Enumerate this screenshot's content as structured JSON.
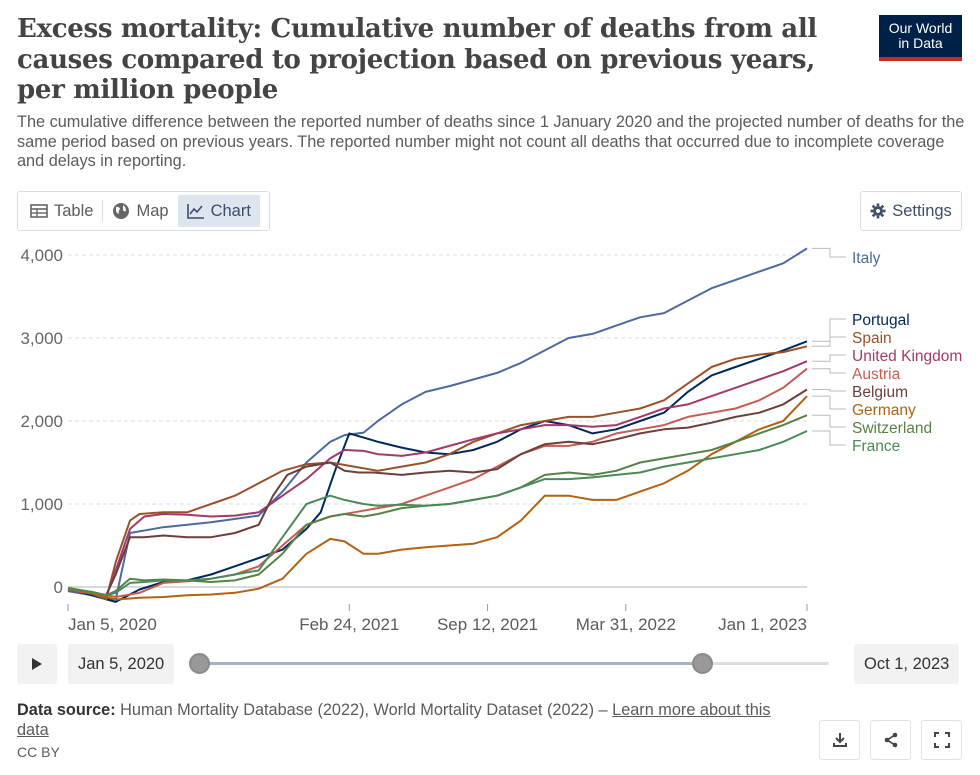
{
  "header": {
    "title": "Excess mortality: Cumulative number of deaths from all causes compared to projection based on previous years, per million people",
    "subtitle": "The cumulative difference between the reported number of deaths since 1 January 2020 and the projected number of deaths for the same period based on previous years. The reported number might not count all deaths that occurred due to incomplete coverage and delays in reporting.",
    "logo_line1": "Our World",
    "logo_line2": "in Data"
  },
  "tabs": [
    {
      "label": "Table",
      "icon": "table-icon"
    },
    {
      "label": "Map",
      "icon": "globe-icon"
    },
    {
      "label": "Chart",
      "icon": "line-chart-icon",
      "active": true
    }
  ],
  "settings_label": "Settings",
  "timeline": {
    "start_label": "Jan 5, 2020",
    "end_label": "Oct 1, 2023"
  },
  "footer": {
    "source_label": "Data source:",
    "source_text": "Human Mortality Database (2022), World Mortality Dataset (2022) –",
    "learn_more": "Learn more about this data",
    "license": "CC BY"
  },
  "colors": {
    "Italy": "#4c6a9c",
    "Portugal": "#00295b",
    "Spain": "#9a5129",
    "United Kingdom": "#a2396b",
    "Austria": "#c65c52",
    "Belgium": "#6d3e3b",
    "Germany": "#b16214",
    "Switzerland": "#578145",
    "France": "#4a8a58"
  },
  "chart_data": {
    "type": "line",
    "title": "Excess mortality: Cumulative number of deaths from all causes compared to projection based on previous years, per million people",
    "ylim": [
      -200,
      4200
    ],
    "yticks": [
      0,
      1000,
      2000,
      3000,
      4000
    ],
    "ytick_labels": [
      "0",
      "1,000",
      "2,000",
      "3,000",
      "4,000"
    ],
    "x_range_weeks": [
      0,
      155
    ],
    "xticks": [
      {
        "week": 0,
        "label": "Jan 5, 2020"
      },
      {
        "week": 59,
        "label": "Feb 24, 2021"
      },
      {
        "week": 88,
        "label": "Sep 12, 2021"
      },
      {
        "week": 117,
        "label": "Mar 31, 2022"
      },
      {
        "week": 155,
        "label": "Jan 1, 2023"
      }
    ],
    "x_unit": "weeks since Jan 5, 2020",
    "series": [
      {
        "name": "Italy",
        "x": [
          0,
          5,
          10,
          13,
          20,
          30,
          40,
          45,
          50,
          55,
          58,
          62,
          65,
          70,
          75,
          80,
          85,
          90,
          95,
          100,
          105,
          110,
          115,
          120,
          125,
          130,
          135,
          140,
          145,
          150,
          155
        ],
        "values": [
          -50,
          -100,
          -150,
          650,
          720,
          780,
          860,
          1150,
          1500,
          1750,
          1830,
          1860,
          2000,
          2200,
          2350,
          2420,
          2500,
          2580,
          2700,
          2850,
          3000,
          3050,
          3150,
          3250,
          3300,
          3450,
          3600,
          3700,
          3800,
          3900,
          4080
        ]
      },
      {
        "name": "Portugal",
        "x": [
          0,
          5,
          10,
          15,
          20,
          25,
          30,
          35,
          40,
          45,
          50,
          53,
          56,
          59,
          62,
          65,
          70,
          75,
          80,
          85,
          90,
          95,
          100,
          105,
          110,
          115,
          120,
          125,
          130,
          135,
          140,
          145,
          150,
          155
        ],
        "values": [
          -20,
          -100,
          -180,
          -30,
          60,
          80,
          150,
          250,
          350,
          450,
          700,
          900,
          1400,
          1850,
          1800,
          1750,
          1680,
          1620,
          1600,
          1650,
          1750,
          1900,
          2000,
          1950,
          1850,
          1900,
          2000,
          2100,
          2350,
          2550,
          2650,
          2750,
          2850,
          2960
        ]
      },
      {
        "name": "Spain",
        "x": [
          0,
          5,
          8,
          10,
          13,
          15,
          20,
          25,
          30,
          35,
          40,
          45,
          50,
          55,
          60,
          65,
          70,
          75,
          80,
          85,
          90,
          95,
          100,
          105,
          110,
          115,
          120,
          125,
          130,
          135,
          140,
          145,
          150,
          155
        ],
        "values": [
          -30,
          -80,
          -150,
          300,
          800,
          880,
          900,
          900,
          1000,
          1100,
          1250,
          1400,
          1480,
          1500,
          1450,
          1400,
          1450,
          1500,
          1600,
          1750,
          1850,
          1950,
          2000,
          2050,
          2050,
          2100,
          2150,
          2250,
          2450,
          2650,
          2750,
          2800,
          2830,
          2900
        ]
      },
      {
        "name": "United Kingdom",
        "x": [
          0,
          5,
          8,
          10,
          13,
          16,
          20,
          25,
          30,
          35,
          40,
          45,
          50,
          55,
          58,
          62,
          65,
          70,
          75,
          80,
          85,
          90,
          95,
          100,
          105,
          110,
          115,
          120,
          125,
          130,
          135,
          140,
          145,
          150,
          155
        ],
        "values": [
          -40,
          -80,
          -120,
          200,
          700,
          850,
          880,
          870,
          850,
          860,
          900,
          1100,
          1300,
          1550,
          1650,
          1640,
          1600,
          1580,
          1620,
          1700,
          1780,
          1850,
          1900,
          1950,
          1950,
          1930,
          1950,
          2050,
          2150,
          2200,
          2300,
          2400,
          2500,
          2600,
          2720
        ]
      },
      {
        "name": "Austria",
        "x": [
          0,
          5,
          10,
          15,
          20,
          25,
          30,
          35,
          40,
          45,
          50,
          55,
          60,
          65,
          70,
          75,
          80,
          85,
          90,
          95,
          100,
          105,
          110,
          115,
          120,
          125,
          130,
          135,
          140,
          145,
          150,
          155
        ],
        "values": [
          -20,
          -60,
          -120,
          -70,
          50,
          70,
          100,
          150,
          250,
          500,
          750,
          850,
          900,
          950,
          1000,
          1100,
          1200,
          1300,
          1450,
          1600,
          1700,
          1700,
          1750,
          1850,
          1900,
          1950,
          2050,
          2100,
          2150,
          2250,
          2400,
          2630
        ]
      },
      {
        "name": "Belgium",
        "x": [
          0,
          5,
          8,
          10,
          13,
          16,
          20,
          25,
          30,
          35,
          40,
          43,
          46,
          50,
          55,
          58,
          61,
          64,
          70,
          75,
          80,
          85,
          90,
          95,
          100,
          105,
          110,
          115,
          120,
          125,
          130,
          135,
          140,
          145,
          150,
          155
        ],
        "values": [
          -30,
          -70,
          -100,
          150,
          600,
          600,
          620,
          600,
          600,
          650,
          750,
          1100,
          1350,
          1450,
          1500,
          1400,
          1380,
          1380,
          1350,
          1380,
          1400,
          1380,
          1420,
          1600,
          1720,
          1750,
          1720,
          1780,
          1850,
          1900,
          1920,
          1980,
          2050,
          2100,
          2200,
          2380
        ]
      },
      {
        "name": "Germany",
        "x": [
          0,
          5,
          10,
          15,
          20,
          25,
          30,
          35,
          40,
          45,
          50,
          55,
          58,
          62,
          65,
          70,
          75,
          80,
          85,
          90,
          95,
          100,
          105,
          110,
          115,
          120,
          125,
          130,
          135,
          140,
          145,
          150,
          155
        ],
        "values": [
          -30,
          -80,
          -150,
          -130,
          -120,
          -100,
          -90,
          -70,
          -20,
          100,
          400,
          580,
          550,
          400,
          400,
          450,
          480,
          500,
          520,
          600,
          800,
          1100,
          1100,
          1050,
          1050,
          1150,
          1250,
          1400,
          1600,
          1750,
          1900,
          2000,
          2300
        ]
      },
      {
        "name": "Switzerland",
        "x": [
          0,
          5,
          8,
          10,
          13,
          16,
          20,
          25,
          30,
          35,
          40,
          45,
          50,
          55,
          58,
          62,
          65,
          70,
          75,
          80,
          85,
          90,
          95,
          100,
          105,
          110,
          115,
          120,
          125,
          130,
          135,
          140,
          145,
          150,
          155
        ],
        "values": [
          -10,
          -60,
          -100,
          -50,
          100,
          80,
          90,
          80,
          60,
          80,
          150,
          400,
          750,
          850,
          880,
          850,
          880,
          950,
          980,
          1000,
          1050,
          1100,
          1200,
          1350,
          1380,
          1350,
          1400,
          1500,
          1550,
          1600,
          1650,
          1750,
          1850,
          1950,
          2070
        ]
      },
      {
        "name": "France",
        "x": [
          0,
          5,
          8,
          10,
          13,
          16,
          20,
          25,
          30,
          35,
          40,
          45,
          50,
          55,
          58,
          62,
          65,
          70,
          75,
          80,
          85,
          90,
          95,
          100,
          105,
          110,
          115,
          120,
          125,
          130,
          135,
          140,
          145,
          150,
          155
        ],
        "values": [
          -20,
          -60,
          -100,
          -70,
          50,
          60,
          80,
          80,
          100,
          150,
          200,
          600,
          1000,
          1100,
          1050,
          1000,
          980,
          990,
          980,
          1000,
          1050,
          1100,
          1200,
          1300,
          1300,
          1320,
          1350,
          1380,
          1450,
          1500,
          1550,
          1600,
          1650,
          1750,
          1880
        ]
      }
    ],
    "legend": {
      "placement": "right",
      "order": [
        "Italy",
        "Portugal",
        "Spain",
        "United Kingdom",
        "Austria",
        "Belgium",
        "Germany",
        "Switzerland",
        "France"
      ]
    }
  }
}
